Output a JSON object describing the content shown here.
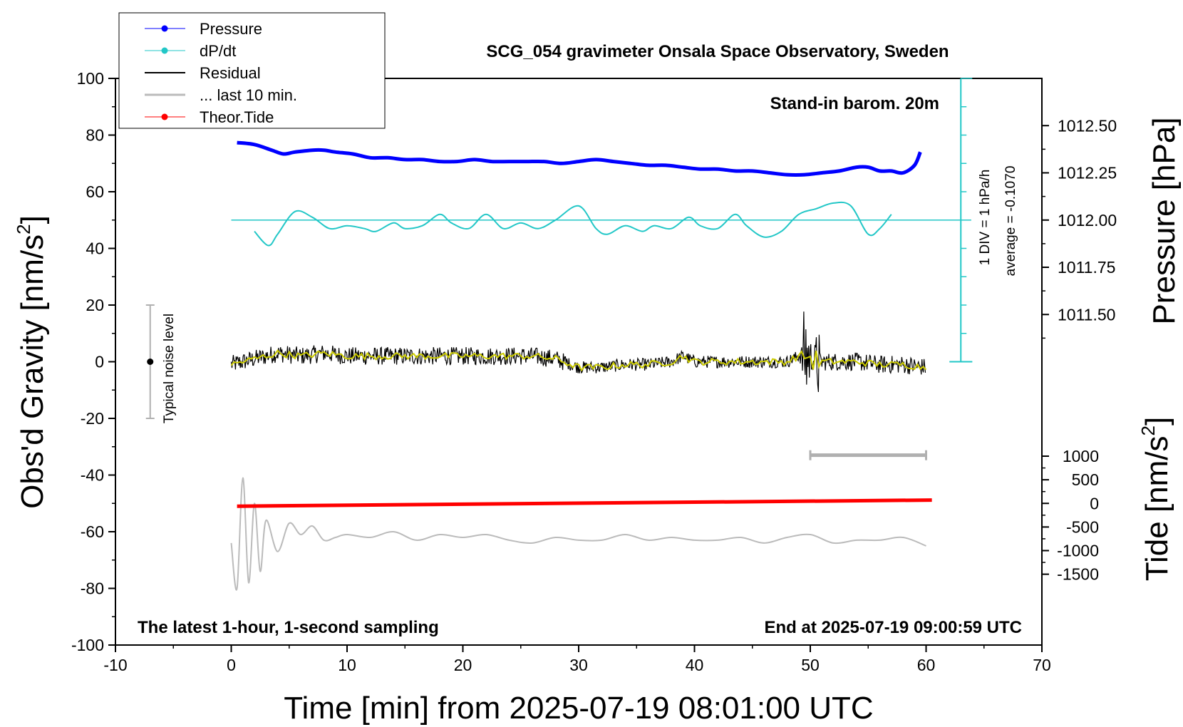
{
  "chart_data": {
    "type": "line",
    "title": "SCG_054 gravimeter Onsala Space Observatory, Sweden",
    "xlabel": "Time [min] from 2025-07-19 08:01:00 UTC",
    "ylabel": "Obs'd Gravity [nm/s",
    "ylabel_sup": "2",
    "ylabel_tail": "]",
    "y2label": "Pressure [hPa]",
    "y3label": "Tide [nm/s",
    "y3label_sup": "2",
    "y3label_tail": "]",
    "xlim": [
      -10,
      70
    ],
    "ylim": [
      -100,
      100
    ],
    "x_ticks": [
      -10,
      0,
      10,
      20,
      30,
      40,
      50,
      60,
      70
    ],
    "y_ticks": [
      100,
      80,
      60,
      40,
      20,
      0,
      -20,
      -40,
      -60,
      -80,
      -100
    ],
    "pressure_ticks": [
      "1012.50",
      "1012.25",
      "1012.00",
      "1011.75",
      "1011.50"
    ],
    "pressure_tick_values": [
      1012.5,
      1012.25,
      1012.0,
      1011.75,
      1011.5
    ],
    "tide_ticks": [
      "1000",
      "500",
      "0",
      "-500",
      "-1000",
      "-1500"
    ],
    "tide_tick_values": [
      1000,
      500,
      0,
      -500,
      -1000,
      -1500
    ],
    "annotations": {
      "barometer": "Stand-in barom. 20m",
      "left_footer": "The latest 1-hour, 1-second sampling",
      "right_footer": "End at 2025-07-19 09:00:59 UTC",
      "noise": "Typical noise level",
      "dpdt_scale": "1 DIV = 1 hPa/h",
      "dpdt_average": "average = -0.1070"
    },
    "legend": {
      "placement": "top-left",
      "entries": [
        "Pressure",
        "dP/dt",
        "Residual",
        "... last 10 min.",
        "Theor.Tide"
      ]
    },
    "colors": {
      "pressure": "#0000ff",
      "dpdt": "#22c7c7",
      "residual": "#000000",
      "smoothed": "#cccc00",
      "last10": "#bbbbbb",
      "tide": "#ff0000",
      "noise_bar": "#b0b0b0"
    },
    "series": [
      {
        "name": "Pressure",
        "axis": "pressure",
        "x": [
          0.5,
          2,
          3.5,
          4.5,
          5.5,
          7,
          8,
          9,
          10.5,
          12,
          13.5,
          15,
          16.5,
          18,
          19.5,
          21,
          22.5,
          24,
          25.5,
          27,
          28.5,
          30,
          31.5,
          33,
          34.5,
          36,
          37.5,
          39,
          40.5,
          42,
          43.5,
          45,
          46.5,
          48,
          49.5,
          51,
          52.5,
          54,
          55,
          56,
          57,
          58,
          59,
          59.5
        ],
        "y": [
          1012.41,
          1012.4,
          1012.37,
          1012.35,
          1012.36,
          1012.37,
          1012.37,
          1012.36,
          1012.35,
          1012.33,
          1012.33,
          1012.32,
          1012.32,
          1012.31,
          1012.31,
          1012.32,
          1012.31,
          1012.31,
          1012.31,
          1012.31,
          1012.3,
          1012.31,
          1012.32,
          1012.31,
          1012.3,
          1012.29,
          1012.29,
          1012.28,
          1012.27,
          1012.27,
          1012.26,
          1012.26,
          1012.25,
          1012.24,
          1012.24,
          1012.25,
          1012.26,
          1012.28,
          1012.28,
          1012.26,
          1012.26,
          1012.25,
          1012.29,
          1012.36
        ]
      },
      {
        "name": "dP/dt",
        "axis": "gravity",
        "x": [
          2,
          3.2,
          4,
          5.5,
          7,
          8.5,
          10,
          11.5,
          12.5,
          14,
          15,
          16.5,
          18,
          19,
          20.5,
          22,
          23.5,
          25,
          26.5,
          28,
          30,
          31.5,
          32.5,
          34,
          35.5,
          36.5,
          38,
          39.5,
          40.5,
          42,
          43.5,
          44.5,
          46,
          47.5,
          49,
          50.5,
          52,
          53.5,
          55,
          56,
          57
        ],
        "y": [
          46,
          41,
          45,
          53,
          51,
          47,
          48,
          47,
          46,
          49,
          47,
          48,
          52,
          49,
          47,
          52,
          47,
          49,
          47,
          50,
          55,
          47,
          45,
          48,
          46,
          48,
          47,
          51,
          48,
          47,
          52,
          48,
          44,
          46,
          52,
          54,
          56,
          55,
          45,
          47,
          52
        ]
      },
      {
        "name": "Residual",
        "axis": "gravity",
        "x": [
          0,
          2,
          4,
          6,
          8,
          10,
          12,
          14,
          16,
          18,
          20,
          22,
          24,
          26,
          28,
          30,
          32,
          34,
          36,
          38,
          39,
          40,
          42,
          44,
          46,
          48,
          49.5,
          50,
          51,
          52,
          54,
          56,
          58,
          60
        ],
        "y": [
          -1,
          1,
          3,
          2,
          3,
          2,
          2,
          2,
          2,
          2,
          2,
          2,
          2,
          2,
          1,
          -2,
          -2,
          -1,
          -1,
          0,
          2,
          0,
          0,
          0,
          0,
          0,
          3,
          1,
          0,
          0,
          0,
          -1,
          -1,
          -2
        ]
      },
      {
        "name": "... last 10 min.",
        "axis": "gravity",
        "x": [
          0,
          0.5,
          1,
          1.5,
          2,
          2.5,
          3,
          4,
          5,
          6,
          7,
          8,
          9,
          10,
          12,
          14,
          16,
          18,
          20,
          22,
          24,
          26,
          28,
          30,
          32,
          34,
          36,
          38,
          40,
          42,
          44,
          46,
          48,
          50,
          52,
          54,
          56,
          58,
          60
        ],
        "y": [
          -64,
          -80,
          -41,
          -78,
          -50,
          -74,
          -56,
          -67,
          -57,
          -61,
          -58,
          -63,
          -62,
          -61,
          -62,
          -60,
          -63,
          -61,
          -62,
          -61,
          -63,
          -64,
          -62,
          -63,
          -63,
          -61,
          -63,
          -62,
          -63,
          -63,
          -62,
          -64,
          -62,
          -61,
          -64,
          -63,
          -63,
          -62,
          -65
        ]
      },
      {
        "name": "Theor.Tide",
        "axis": "tide",
        "x": [
          0.5,
          60.5
        ],
        "y": [
          -60,
          70
        ]
      }
    ],
    "noise_level": {
      "x": -7,
      "y": 0,
      "low": -20,
      "high": 20
    },
    "last10_bar": {
      "x0": 50,
      "x1": 60,
      "y": -33
    },
    "dpdt_axis": {
      "x": 63,
      "top": 100,
      "bottom": 0,
      "zero_y": 50
    }
  }
}
